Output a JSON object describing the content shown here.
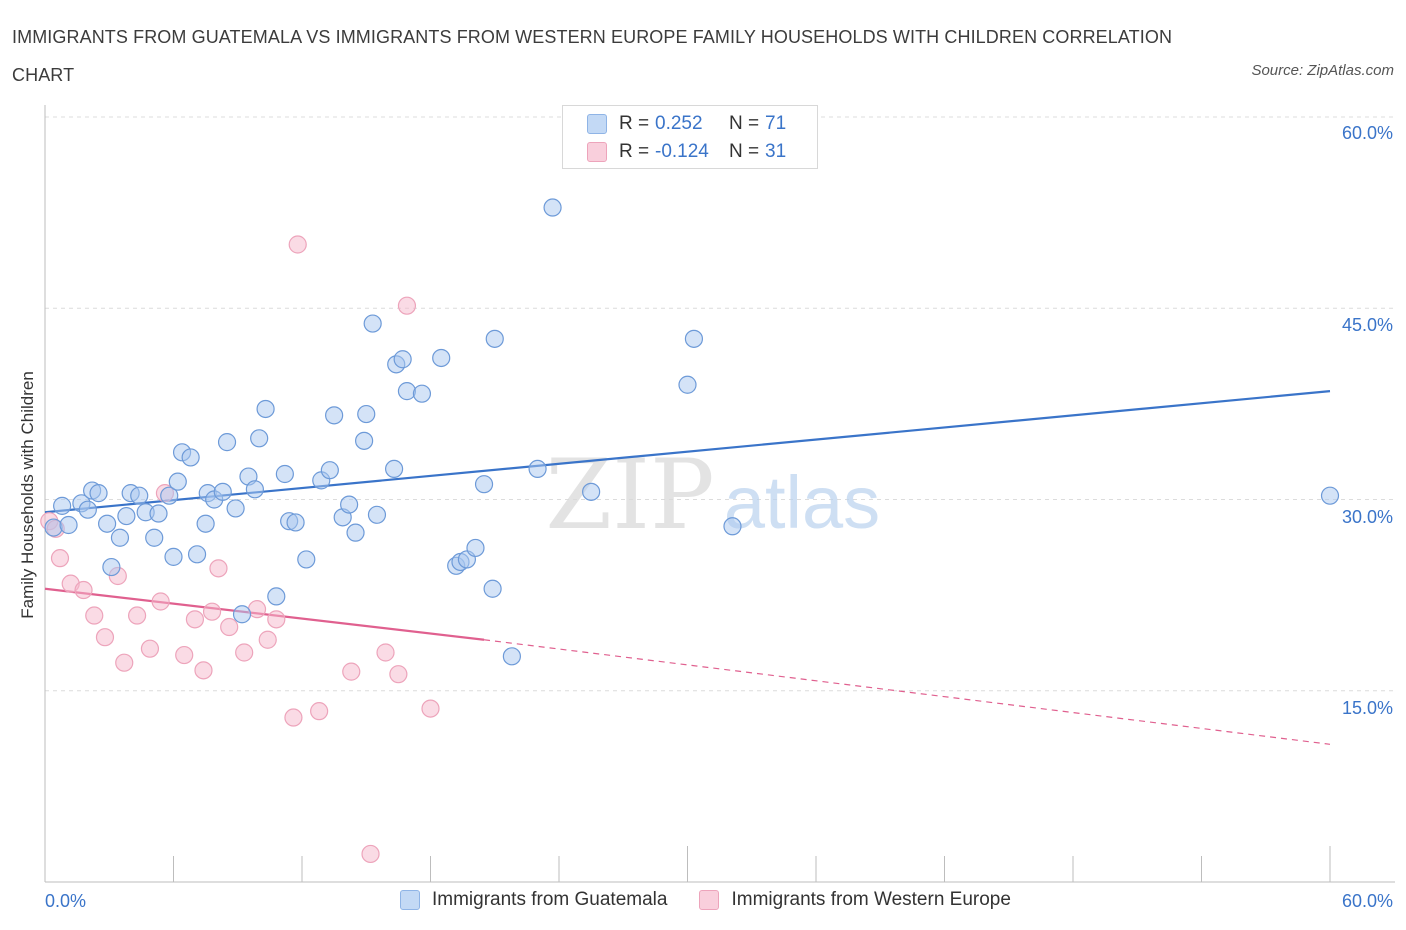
{
  "title": "IMMIGRANTS FROM GUATEMALA VS IMMIGRANTS FROM WESTERN EUROPE FAMILY HOUSEHOLDS WITH CHILDREN CORRELATION CHART",
  "source": "Source: ZipAtlas.com",
  "watermark": {
    "zip": "ZIP",
    "atlas": "atlas"
  },
  "legend": {
    "rows": [
      {
        "r_label": "R =",
        "r_value": "0.252",
        "n_label": "N =",
        "n_value": "71",
        "color": "#a9c8f0"
      },
      {
        "r_label": "R =",
        "r_value": "-0.124",
        "n_label": "N =",
        "n_value": "31",
        "color": "#f5b8cb"
      }
    ]
  },
  "bottom_legend": [
    {
      "label": "Immigrants from Guatemala",
      "color": "#a9c8f0"
    },
    {
      "label": "Immigrants from Western Europe",
      "color": "#f5b8cb"
    }
  ],
  "chart_data": {
    "type": "scatter",
    "title": "IMMIGRANTS FROM GUATEMALA VS IMMIGRANTS FROM WESTERN EUROPE FAMILY HOUSEHOLDS WITH CHILDREN CORRELATION CHART",
    "xlabel": "",
    "ylabel": "Family Households with Children",
    "xlim": [
      0,
      60
    ],
    "ylim": [
      0,
      60
    ],
    "x_tick_labels": [
      "0.0%",
      "60.0%"
    ],
    "y_tick_labels": [
      "15.0%",
      "30.0%",
      "45.0%",
      "60.0%"
    ],
    "y_ticks": [
      15,
      30,
      45,
      60
    ],
    "grid": true,
    "colors": {
      "blue": "#3a74c9",
      "blue_fill": "#a9c8f0",
      "pink": "#e0608f",
      "pink_fill": "#f5b8cb"
    },
    "series": [
      {
        "name": "Immigrants from Guatemala",
        "color": "#a9c8f0",
        "trend": {
          "x": [
            0,
            60
          ],
          "y": [
            29.0,
            38.5
          ],
          "style": "solid"
        },
        "points": [
          [
            0.4,
            27.8
          ],
          [
            0.8,
            29.5
          ],
          [
            1.1,
            28.0
          ],
          [
            1.7,
            29.7
          ],
          [
            2.0,
            29.2
          ],
          [
            2.2,
            30.7
          ],
          [
            2.5,
            30.5
          ],
          [
            2.9,
            28.1
          ],
          [
            3.1,
            24.7
          ],
          [
            3.5,
            27.0
          ],
          [
            3.8,
            28.7
          ],
          [
            4.0,
            30.5
          ],
          [
            4.4,
            30.3
          ],
          [
            4.7,
            29.0
          ],
          [
            5.1,
            27.0
          ],
          [
            5.3,
            28.9
          ],
          [
            5.8,
            30.3
          ],
          [
            6.0,
            25.5
          ],
          [
            6.2,
            31.4
          ],
          [
            6.4,
            33.7
          ],
          [
            6.8,
            33.3
          ],
          [
            7.1,
            25.7
          ],
          [
            7.5,
            28.1
          ],
          [
            7.6,
            30.5
          ],
          [
            7.9,
            30.0
          ],
          [
            8.3,
            30.6
          ],
          [
            8.5,
            34.5
          ],
          [
            8.9,
            29.3
          ],
          [
            9.2,
            21.0
          ],
          [
            9.5,
            31.8
          ],
          [
            9.8,
            30.8
          ],
          [
            10.0,
            34.8
          ],
          [
            10.3,
            37.1
          ],
          [
            10.8,
            22.4
          ],
          [
            11.2,
            32.0
          ],
          [
            11.4,
            28.3
          ],
          [
            11.7,
            28.2
          ],
          [
            12.2,
            25.3
          ],
          [
            12.9,
            31.5
          ],
          [
            13.3,
            32.3
          ],
          [
            13.5,
            36.6
          ],
          [
            13.9,
            28.6
          ],
          [
            14.2,
            29.6
          ],
          [
            14.5,
            27.4
          ],
          [
            14.9,
            34.6
          ],
          [
            15.0,
            36.7
          ],
          [
            15.3,
            43.8
          ],
          [
            15.5,
            28.8
          ],
          [
            16.3,
            32.4
          ],
          [
            16.4,
            40.6
          ],
          [
            16.7,
            41.0
          ],
          [
            16.9,
            38.5
          ],
          [
            17.6,
            38.3
          ],
          [
            18.5,
            41.1
          ],
          [
            19.2,
            24.8
          ],
          [
            19.4,
            25.1
          ],
          [
            19.7,
            25.3
          ],
          [
            20.1,
            26.2
          ],
          [
            20.5,
            31.2
          ],
          [
            20.9,
            23.0
          ],
          [
            21.0,
            42.6
          ],
          [
            21.8,
            17.7
          ],
          [
            23.0,
            32.4
          ],
          [
            23.7,
            52.9
          ],
          [
            25.5,
            30.6
          ],
          [
            30.0,
            39.0
          ],
          [
            30.3,
            42.6
          ],
          [
            32.1,
            27.9
          ],
          [
            60.0,
            30.3
          ]
        ]
      },
      {
        "name": "Immigrants from Western Europe",
        "color": "#f5b8cb",
        "trend": {
          "x": [
            0,
            20.5
          ],
          "y": [
            23.0,
            19.0
          ],
          "style": "solid",
          "dashed_to": [
            60,
            10.8
          ]
        },
        "points": [
          [
            0.2,
            28.3
          ],
          [
            0.5,
            27.7
          ],
          [
            0.7,
            25.4
          ],
          [
            1.2,
            23.4
          ],
          [
            1.8,
            22.9
          ],
          [
            2.3,
            20.9
          ],
          [
            2.8,
            19.2
          ],
          [
            3.4,
            24.0
          ],
          [
            3.7,
            17.2
          ],
          [
            4.3,
            20.9
          ],
          [
            4.9,
            18.3
          ],
          [
            5.4,
            22.0
          ],
          [
            5.6,
            30.5
          ],
          [
            6.5,
            17.8
          ],
          [
            7.0,
            20.6
          ],
          [
            7.4,
            16.6
          ],
          [
            7.8,
            21.2
          ],
          [
            8.1,
            24.6
          ],
          [
            8.6,
            20.0
          ],
          [
            9.3,
            18.0
          ],
          [
            9.9,
            21.4
          ],
          [
            10.4,
            19.0
          ],
          [
            10.8,
            20.6
          ],
          [
            11.6,
            12.9
          ],
          [
            11.8,
            50.0
          ],
          [
            12.8,
            13.4
          ],
          [
            14.3,
            16.5
          ],
          [
            15.2,
            2.2
          ],
          [
            15.9,
            18.0
          ],
          [
            16.5,
            16.3
          ],
          [
            16.9,
            45.2
          ],
          [
            18.0,
            13.6
          ]
        ]
      }
    ]
  }
}
